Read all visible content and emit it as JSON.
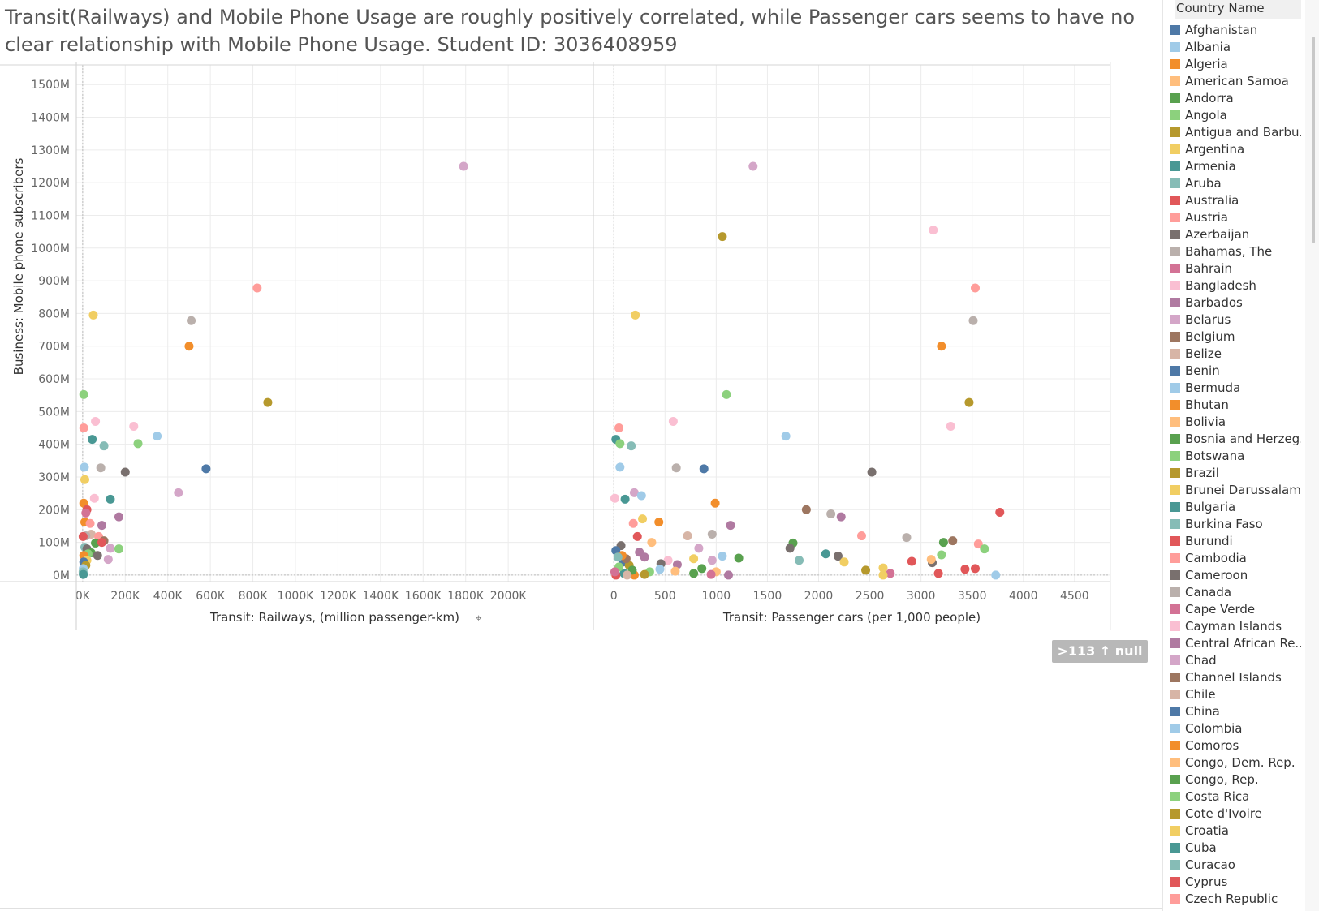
{
  "title": "Transit(Railways) and Mobile Phone Usage are roughly positively correlated, while Passenger cars seems to have no clear relationship with Mobile Phone Usage. Student ID: 3036408959",
  "null_indicator": ">113 ↑ null",
  "legend": {
    "title": "Country Name",
    "items": [
      {
        "label": "Afghanistan",
        "color": "#4e79a7"
      },
      {
        "label": "Albania",
        "color": "#a0cbe8"
      },
      {
        "label": "Algeria",
        "color": "#f28e2b"
      },
      {
        "label": "American Samoa",
        "color": "#ffbe7d"
      },
      {
        "label": "Andorra",
        "color": "#59a14f"
      },
      {
        "label": "Angola",
        "color": "#8cd17d"
      },
      {
        "label": "Antigua and Barbu..",
        "color": "#b6992d"
      },
      {
        "label": "Argentina",
        "color": "#f1ce63"
      },
      {
        "label": "Armenia",
        "color": "#499894"
      },
      {
        "label": "Aruba",
        "color": "#86bcb6"
      },
      {
        "label": "Australia",
        "color": "#e15759"
      },
      {
        "label": "Austria",
        "color": "#ff9d9a"
      },
      {
        "label": "Azerbaijan",
        "color": "#79706e"
      },
      {
        "label": "Bahamas, The",
        "color": "#bab0ac"
      },
      {
        "label": "Bahrain",
        "color": "#d37295"
      },
      {
        "label": "Bangladesh",
        "color": "#fabfd2"
      },
      {
        "label": "Barbados",
        "color": "#b07aa1"
      },
      {
        "label": "Belarus",
        "color": "#d4a6c8"
      },
      {
        "label": "Belgium",
        "color": "#9d7660"
      },
      {
        "label": "Belize",
        "color": "#d7b5a6"
      },
      {
        "label": "Benin",
        "color": "#4e79a7"
      },
      {
        "label": "Bermuda",
        "color": "#a0cbe8"
      },
      {
        "label": "Bhutan",
        "color": "#f28e2b"
      },
      {
        "label": "Bolivia",
        "color": "#ffbe7d"
      },
      {
        "label": "Bosnia and Herzeg..",
        "color": "#59a14f"
      },
      {
        "label": "Botswana",
        "color": "#8cd17d"
      },
      {
        "label": "Brazil",
        "color": "#b6992d"
      },
      {
        "label": "Brunei Darussalam",
        "color": "#f1ce63"
      },
      {
        "label": "Bulgaria",
        "color": "#499894"
      },
      {
        "label": "Burkina Faso",
        "color": "#86bcb6"
      },
      {
        "label": "Burundi",
        "color": "#e15759"
      },
      {
        "label": "Cambodia",
        "color": "#ff9d9a"
      },
      {
        "label": "Cameroon",
        "color": "#79706e"
      },
      {
        "label": "Canada",
        "color": "#bab0ac"
      },
      {
        "label": "Cape Verde",
        "color": "#d37295"
      },
      {
        "label": "Cayman Islands",
        "color": "#fabfd2"
      },
      {
        "label": "Central African Re..",
        "color": "#b07aa1"
      },
      {
        "label": "Chad",
        "color": "#d4a6c8"
      },
      {
        "label": "Channel Islands",
        "color": "#9d7660"
      },
      {
        "label": "Chile",
        "color": "#d7b5a6"
      },
      {
        "label": "China",
        "color": "#4e79a7"
      },
      {
        "label": "Colombia",
        "color": "#a0cbe8"
      },
      {
        "label": "Comoros",
        "color": "#f28e2b"
      },
      {
        "label": "Congo, Dem. Rep.",
        "color": "#ffbe7d"
      },
      {
        "label": "Congo, Rep.",
        "color": "#59a14f"
      },
      {
        "label": "Costa Rica",
        "color": "#8cd17d"
      },
      {
        "label": "Cote d'Ivoire",
        "color": "#b6992d"
      },
      {
        "label": "Croatia",
        "color": "#f1ce63"
      },
      {
        "label": "Cuba",
        "color": "#499894"
      },
      {
        "label": "Curacao",
        "color": "#86bcb6"
      },
      {
        "label": "Cyprus",
        "color": "#e15759"
      },
      {
        "label": "Czech Republic",
        "color": "#ff9d9a"
      }
    ]
  },
  "chart_data": [
    {
      "type": "scatter",
      "xlabel": "Transit: Railways, (million passenger-km)",
      "ylabel": "Business: Mobile phone subscribers",
      "x_ticks": [
        "0K",
        "200K",
        "400K",
        "600K",
        "800K",
        "1000K",
        "1200K",
        "1400K",
        "1600K",
        "1800K",
        "2000K"
      ],
      "y_ticks": [
        "0M",
        "100M",
        "200M",
        "300M",
        "400M",
        "500M",
        "600M",
        "700M",
        "800M",
        "900M",
        "1000M",
        "1100M",
        "1200M",
        "1300M",
        "1400M",
        "1500M"
      ],
      "xlim": [
        -30000,
        2400000
      ],
      "ylim": [
        -20,
        1560
      ],
      "points": [
        {
          "x": 1790000,
          "y": 1250,
          "color": "#d4a6c8"
        },
        {
          "x": 820000,
          "y": 878,
          "color": "#ff9d9a"
        },
        {
          "x": 50000,
          "y": 795,
          "color": "#f1ce63"
        },
        {
          "x": 510000,
          "y": 778,
          "color": "#bab0ac"
        },
        {
          "x": 500000,
          "y": 700,
          "color": "#f28e2b"
        },
        {
          "x": 870000,
          "y": 528,
          "color": "#b6992d"
        },
        {
          "x": 5000,
          "y": 552,
          "color": "#8cd17d"
        },
        {
          "x": 5000,
          "y": 450,
          "color": "#ff9d9a"
        },
        {
          "x": 60000,
          "y": 470,
          "color": "#fabfd2"
        },
        {
          "x": 240000,
          "y": 455,
          "color": "#fabfd2"
        },
        {
          "x": 350000,
          "y": 425,
          "color": "#a0cbe8"
        },
        {
          "x": 45000,
          "y": 415,
          "color": "#499894"
        },
        {
          "x": 260000,
          "y": 402,
          "color": "#8cd17d"
        },
        {
          "x": 100000,
          "y": 395,
          "color": "#86bcb6"
        },
        {
          "x": 8000,
          "y": 330,
          "color": "#a0cbe8"
        },
        {
          "x": 85000,
          "y": 328,
          "color": "#bab0ac"
        },
        {
          "x": 580000,
          "y": 325,
          "color": "#4e79a7"
        },
        {
          "x": 200000,
          "y": 315,
          "color": "#79706e"
        },
        {
          "x": 10000,
          "y": 292,
          "color": "#f1ce63"
        },
        {
          "x": 450000,
          "y": 252,
          "color": "#d4a6c8"
        },
        {
          "x": 55000,
          "y": 235,
          "color": "#fabfd2"
        },
        {
          "x": 130000,
          "y": 232,
          "color": "#499894"
        },
        {
          "x": 5000,
          "y": 220,
          "color": "#f28e2b"
        },
        {
          "x": 20000,
          "y": 200,
          "color": "#e15759"
        },
        {
          "x": 15000,
          "y": 190,
          "color": "#d37295"
        },
        {
          "x": 170000,
          "y": 178,
          "color": "#b07aa1"
        },
        {
          "x": 10000,
          "y": 162,
          "color": "#f28e2b"
        },
        {
          "x": 35000,
          "y": 158,
          "color": "#ff9d9a"
        },
        {
          "x": 90000,
          "y": 152,
          "color": "#b07aa1"
        },
        {
          "x": 40000,
          "y": 125,
          "color": "#d7b5a6"
        },
        {
          "x": 15000,
          "y": 120,
          "color": "#bab0ac"
        },
        {
          "x": 75000,
          "y": 118,
          "color": "#ff9d9a"
        },
        {
          "x": 2000,
          "y": 118,
          "color": "#e15759"
        },
        {
          "x": 100000,
          "y": 105,
          "color": "#9d7660"
        },
        {
          "x": 60000,
          "y": 98,
          "color": "#59a14f"
        },
        {
          "x": 90000,
          "y": 100,
          "color": "#e15759"
        },
        {
          "x": 10000,
          "y": 85,
          "color": "#86bcb6"
        },
        {
          "x": 20000,
          "y": 80,
          "color": "#79706e"
        },
        {
          "x": 130000,
          "y": 82,
          "color": "#d4a6c8"
        },
        {
          "x": 170000,
          "y": 80,
          "color": "#8cd17d"
        },
        {
          "x": 40000,
          "y": 68,
          "color": "#59a14f"
        },
        {
          "x": 25000,
          "y": 65,
          "color": "#8cd17d"
        },
        {
          "x": 70000,
          "y": 60,
          "color": "#79706e"
        },
        {
          "x": 5000,
          "y": 60,
          "color": "#f28e2b"
        },
        {
          "x": 120000,
          "y": 48,
          "color": "#d4a6c8"
        },
        {
          "x": 20000,
          "y": 45,
          "color": "#f1ce63"
        },
        {
          "x": 5000,
          "y": 40,
          "color": "#4e79a7"
        },
        {
          "x": 15000,
          "y": 30,
          "color": "#b6992d"
        },
        {
          "x": 3000,
          "y": 20,
          "color": "#a0cbe8"
        },
        {
          "x": 2000,
          "y": 10,
          "color": "#86bcb6"
        },
        {
          "x": 3000,
          "y": 2,
          "color": "#499894"
        }
      ]
    },
    {
      "type": "scatter",
      "xlabel": "Transit: Passenger cars (per 1,000 people)",
      "ylabel": "Business: Mobile phone subscribers",
      "x_ticks": [
        "0",
        "500",
        "1000",
        "1500",
        "2000",
        "2500",
        "3000",
        "3500",
        "4000",
        "4500"
      ],
      "y_ticks": [
        "0M",
        "100M",
        "200M",
        "300M",
        "400M",
        "500M",
        "600M",
        "700M",
        "800M",
        "900M",
        "1000M",
        "1100M",
        "1200M",
        "1300M",
        "1400M",
        "1500M"
      ],
      "xlim": [
        -200,
        4850
      ],
      "ylim": [
        -20,
        1560
      ],
      "points": [
        {
          "x": 1360,
          "y": 1250,
          "color": "#d4a6c8"
        },
        {
          "x": 1060,
          "y": 1035,
          "color": "#b6992d"
        },
        {
          "x": 3120,
          "y": 1055,
          "color": "#fabfd2"
        },
        {
          "x": 3530,
          "y": 878,
          "color": "#ff9d9a"
        },
        {
          "x": 210,
          "y": 795,
          "color": "#f1ce63"
        },
        {
          "x": 3510,
          "y": 778,
          "color": "#bab0ac"
        },
        {
          "x": 3200,
          "y": 700,
          "color": "#f28e2b"
        },
        {
          "x": 1100,
          "y": 552,
          "color": "#8cd17d"
        },
        {
          "x": 3470,
          "y": 528,
          "color": "#b6992d"
        },
        {
          "x": 580,
          "y": 470,
          "color": "#fabfd2"
        },
        {
          "x": 3290,
          "y": 455,
          "color": "#fabfd2"
        },
        {
          "x": 50,
          "y": 450,
          "color": "#ff9d9a"
        },
        {
          "x": 1680,
          "y": 425,
          "color": "#a0cbe8"
        },
        {
          "x": 20,
          "y": 415,
          "color": "#499894"
        },
        {
          "x": 60,
          "y": 402,
          "color": "#8cd17d"
        },
        {
          "x": 170,
          "y": 395,
          "color": "#86bcb6"
        },
        {
          "x": 60,
          "y": 330,
          "color": "#a0cbe8"
        },
        {
          "x": 610,
          "y": 328,
          "color": "#bab0ac"
        },
        {
          "x": 880,
          "y": 325,
          "color": "#4e79a7"
        },
        {
          "x": 2520,
          "y": 315,
          "color": "#79706e"
        },
        {
          "x": 200,
          "y": 252,
          "color": "#d4a6c8"
        },
        {
          "x": 270,
          "y": 243,
          "color": "#a0cbe8"
        },
        {
          "x": 10,
          "y": 235,
          "color": "#fabfd2"
        },
        {
          "x": 110,
          "y": 232,
          "color": "#499894"
        },
        {
          "x": 990,
          "y": 220,
          "color": "#f28e2b"
        },
        {
          "x": 1880,
          "y": 200,
          "color": "#9d7660"
        },
        {
          "x": 3770,
          "y": 192,
          "color": "#e15759"
        },
        {
          "x": 2120,
          "y": 187,
          "color": "#bab0ac"
        },
        {
          "x": 2220,
          "y": 178,
          "color": "#b07aa1"
        },
        {
          "x": 280,
          "y": 172,
          "color": "#f1ce63"
        },
        {
          "x": 440,
          "y": 162,
          "color": "#f28e2b"
        },
        {
          "x": 190,
          "y": 158,
          "color": "#ff9d9a"
        },
        {
          "x": 1140,
          "y": 152,
          "color": "#b07aa1"
        },
        {
          "x": 960,
          "y": 125,
          "color": "#bab0ac"
        },
        {
          "x": 720,
          "y": 120,
          "color": "#d7b5a6"
        },
        {
          "x": 2420,
          "y": 120,
          "color": "#ff9d9a"
        },
        {
          "x": 230,
          "y": 118,
          "color": "#e15759"
        },
        {
          "x": 2860,
          "y": 115,
          "color": "#bab0ac"
        },
        {
          "x": 3310,
          "y": 105,
          "color": "#9d7660"
        },
        {
          "x": 370,
          "y": 100,
          "color": "#ffbe7d"
        },
        {
          "x": 3220,
          "y": 100,
          "color": "#59a14f"
        },
        {
          "x": 1750,
          "y": 98,
          "color": "#59a14f"
        },
        {
          "x": 3560,
          "y": 95,
          "color": "#ff9d9a"
        },
        {
          "x": 70,
          "y": 90,
          "color": "#79706e"
        },
        {
          "x": 3620,
          "y": 80,
          "color": "#8cd17d"
        },
        {
          "x": 830,
          "y": 82,
          "color": "#d4a6c8"
        },
        {
          "x": 1720,
          "y": 82,
          "color": "#79706e"
        },
        {
          "x": 20,
          "y": 75,
          "color": "#4e79a7"
        },
        {
          "x": 250,
          "y": 70,
          "color": "#b07aa1"
        },
        {
          "x": 2070,
          "y": 65,
          "color": "#499894"
        },
        {
          "x": 3200,
          "y": 62,
          "color": "#8cd17d"
        },
        {
          "x": 2190,
          "y": 58,
          "color": "#79706e"
        },
        {
          "x": 1060,
          "y": 58,
          "color": "#a0cbe8"
        },
        {
          "x": 300,
          "y": 55,
          "color": "#b07aa1"
        },
        {
          "x": 780,
          "y": 50,
          "color": "#f1ce63"
        },
        {
          "x": 1220,
          "y": 52,
          "color": "#59a14f"
        },
        {
          "x": 530,
          "y": 45,
          "color": "#fabfd2"
        },
        {
          "x": 960,
          "y": 45,
          "color": "#d4a6c8"
        },
        {
          "x": 1810,
          "y": 45,
          "color": "#86bcb6"
        },
        {
          "x": 2250,
          "y": 40,
          "color": "#f1ce63"
        },
        {
          "x": 2910,
          "y": 42,
          "color": "#e15759"
        },
        {
          "x": 3110,
          "y": 38,
          "color": "#79706e"
        },
        {
          "x": 460,
          "y": 35,
          "color": "#79706e"
        },
        {
          "x": 620,
          "y": 32,
          "color": "#b07aa1"
        },
        {
          "x": 90,
          "y": 40,
          "color": "#4e79a7"
        },
        {
          "x": 3100,
          "y": 48,
          "color": "#ffbe7d"
        },
        {
          "x": 2630,
          "y": 22,
          "color": "#f1ce63"
        },
        {
          "x": 3530,
          "y": 20,
          "color": "#e15759"
        },
        {
          "x": 3430,
          "y": 18,
          "color": "#e15759"
        },
        {
          "x": 2460,
          "y": 15,
          "color": "#b6992d"
        },
        {
          "x": 450,
          "y": 18,
          "color": "#a0cbe8"
        },
        {
          "x": 860,
          "y": 20,
          "color": "#59a14f"
        },
        {
          "x": 350,
          "y": 10,
          "color": "#8cd17d"
        },
        {
          "x": 600,
          "y": 12,
          "color": "#ffbe7d"
        },
        {
          "x": 1000,
          "y": 10,
          "color": "#ffbe7d"
        },
        {
          "x": 2700,
          "y": 5,
          "color": "#d37295"
        },
        {
          "x": 3170,
          "y": 5,
          "color": "#e15759"
        },
        {
          "x": 3730,
          "y": 0,
          "color": "#a0cbe8"
        },
        {
          "x": 2630,
          "y": 0,
          "color": "#f1ce63"
        },
        {
          "x": 1120,
          "y": 0,
          "color": "#b07aa1"
        },
        {
          "x": 950,
          "y": 2,
          "color": "#d37295"
        },
        {
          "x": 780,
          "y": 5,
          "color": "#59a14f"
        },
        {
          "x": 300,
          "y": 2,
          "color": "#b6992d"
        },
        {
          "x": 200,
          "y": 0,
          "color": "#f28e2b"
        },
        {
          "x": 100,
          "y": 5,
          "color": "#499894"
        },
        {
          "x": 20,
          "y": 0,
          "color": "#e15759"
        },
        {
          "x": 150,
          "y": 30,
          "color": "#b6992d"
        },
        {
          "x": 50,
          "y": 25,
          "color": "#8cd17d"
        },
        {
          "x": 120,
          "y": 50,
          "color": "#9d7660"
        },
        {
          "x": 80,
          "y": 60,
          "color": "#f28e2b"
        },
        {
          "x": 10,
          "y": 10,
          "color": "#d37295"
        },
        {
          "x": 40,
          "y": 55,
          "color": "#86bcb6"
        },
        {
          "x": 180,
          "y": 15,
          "color": "#59a14f"
        },
        {
          "x": 130,
          "y": 0,
          "color": "#d7b5a6"
        }
      ]
    }
  ]
}
